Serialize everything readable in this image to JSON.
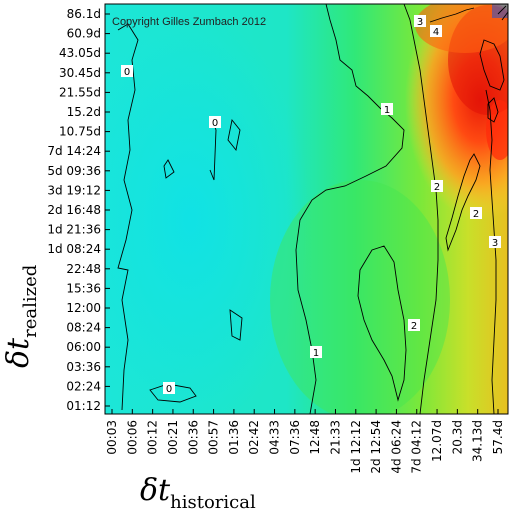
{
  "chart_data": {
    "type": "heatmap",
    "copyright": "Copyright Gilles Zumbach 2012",
    "x_axis": {
      "symbol": "δt",
      "subscript": "historical",
      "ticks": [
        "00:03",
        "00:06",
        "00:12",
        "00:21",
        "00:36",
        "00:57",
        "01:36",
        "02:42",
        "04:33",
        "07:36",
        "12:48",
        "21:33",
        "1d 12:12",
        "2d 12:54",
        "4d 06:24",
        "7d 04:12",
        "12.07d",
        "20.3d",
        "34.13d",
        "57.4d"
      ]
    },
    "y_axis": {
      "symbol": "δt",
      "subscript": "realized",
      "ticks": [
        "01:12",
        "02:24",
        "03:36",
        "06:00",
        "08:24",
        "12:00",
        "15:36",
        "22:48",
        "1d 08:24",
        "1d 21:36",
        "2d 16:48",
        "3d 19:12",
        "5d 09:36",
        "7d 14:24",
        "10.75d",
        "15.2d",
        "21.55d",
        "30.45d",
        "43.05d",
        "60.9d",
        "86.1d"
      ]
    },
    "contour_labels": [
      "0",
      "0",
      "0",
      "1",
      "1",
      "2",
      "2",
      "2",
      "3",
      "3",
      "4"
    ],
    "colors": {
      "low": "#18e4d8",
      "mid": "#2ee86a",
      "high_mid": "#a8e82a",
      "high": "#ff3a10",
      "max": "#d40000",
      "contour": "#000000"
    }
  }
}
